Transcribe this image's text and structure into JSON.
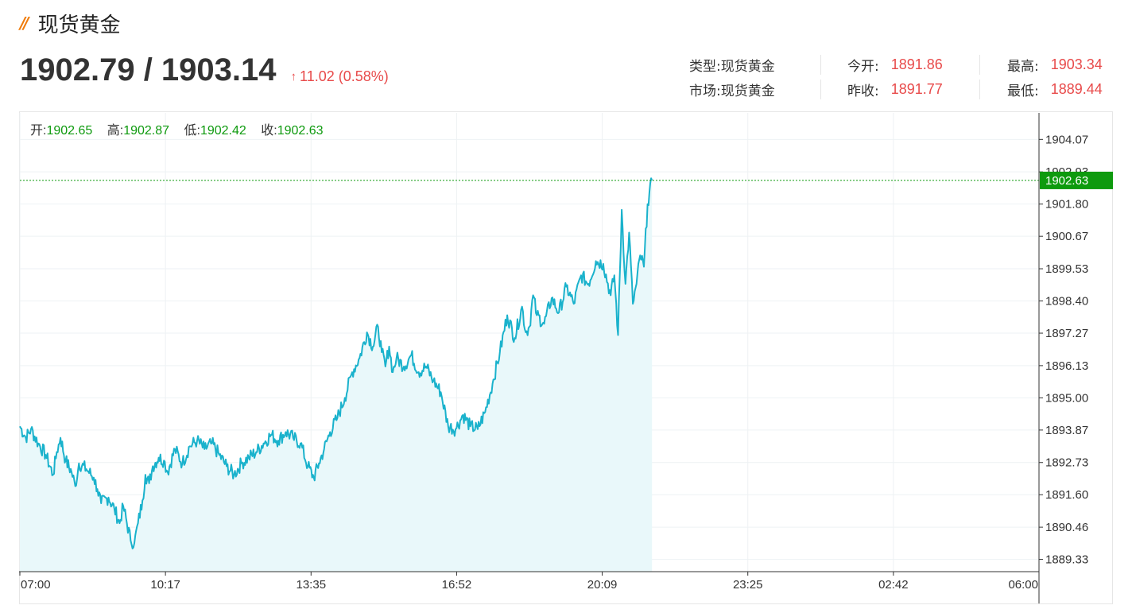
{
  "header": {
    "mark": "//",
    "title": "现货黄金",
    "price": "1902.79 / 1903.14",
    "change_arrow": "↑",
    "change": "11.02 (0.58%)"
  },
  "info": {
    "type_label": "类型:",
    "type_value": "现货黄金",
    "market_label": "市场:",
    "market_value": "现货黄金",
    "open_label": "今开:",
    "open_value": "1891.86",
    "prev_close_label": "昨收:",
    "prev_close_value": "1891.77",
    "high_label": "最高:",
    "high_value": "1903.34",
    "low_label": "最低:",
    "low_value": "1889.44"
  },
  "ohlc": {
    "open_label": "开:",
    "open_value": "1902.65",
    "high_label": "高:",
    "high_value": "1902.87",
    "low_label": "低:",
    "low_value": "1902.42",
    "close_label": "收:",
    "close_value": "1902.63"
  },
  "chart_data": {
    "type": "area",
    "title": "",
    "xlabel": "",
    "ylabel": "",
    "x_ticks": [
      "07:00",
      "10:17",
      "13:35",
      "16:52",
      "20:09",
      "23:25",
      "02:42",
      "06:00"
    ],
    "y_ticks": [
      1889.33,
      1890.46,
      1891.6,
      1892.73,
      1893.87,
      1895.0,
      1896.13,
      1897.27,
      1898.4,
      1899.53,
      1900.67,
      1901.8,
      1902.93,
      1904.07
    ],
    "ylim": [
      1888.9,
      1905.0
    ],
    "xlim_minutes": [
      0,
      1380
    ],
    "current_price_label": "1902.63",
    "current_price": 1902.63,
    "line_color": "#1ab2cc",
    "fill_color": "#e9f8fa",
    "price_tag_color": "#0e9a0e",
    "ohlc_value_color": "#0e9a0e",
    "grid": true,
    "series": [
      {
        "x_minutes": [
          0,
          8,
          15,
          25,
          35,
          45,
          50,
          55,
          62,
          70,
          75,
          80,
          90,
          100,
          105,
          110,
          120,
          128,
          135,
          140,
          150,
          155,
          160,
          166,
          170,
          175,
          180,
          188,
          195,
          200,
          210,
          220,
          230,
          240,
          250,
          260,
          270,
          280,
          290,
          300,
          310,
          320,
          330,
          340,
          350,
          360,
          370,
          380,
          390,
          398,
          405,
          412,
          420,
          430,
          440,
          450,
          460,
          470,
          478,
          485,
          490,
          495,
          500,
          505,
          510,
          520,
          530,
          540,
          550,
          560,
          570,
          580,
          590,
          600,
          610,
          620,
          630,
          640,
          650,
          660,
          670,
          680,
          685,
          690,
          695,
          700,
          710,
          720,
          730,
          740,
          750,
          760,
          770,
          780,
          790,
          800,
          805,
          810,
          815,
          820,
          825,
          830,
          835,
          840,
          845,
          850,
          856
        ],
        "values": [
          1894.0,
          1893.6,
          1893.9,
          1893.4,
          1893.0,
          1892.3,
          1893.1,
          1893.6,
          1892.8,
          1892.4,
          1891.9,
          1892.7,
          1892.5,
          1892.2,
          1891.8,
          1891.3,
          1891.5,
          1891.1,
          1890.6,
          1891.2,
          1890.0,
          1889.9,
          1890.6,
          1891.4,
          1892.3,
          1892.0,
          1892.6,
          1892.9,
          1892.8,
          1892.4,
          1893.2,
          1892.7,
          1893.3,
          1893.5,
          1893.2,
          1893.4,
          1893.0,
          1892.6,
          1892.3,
          1892.7,
          1892.9,
          1893.1,
          1893.4,
          1893.7,
          1893.5,
          1893.8,
          1893.6,
          1893.4,
          1892.6,
          1892.2,
          1892.7,
          1893.2,
          1893.8,
          1894.3,
          1895.0,
          1895.9,
          1896.4,
          1897.3,
          1896.8,
          1897.5,
          1896.6,
          1896.1,
          1896.8,
          1895.9,
          1896.4,
          1896.1,
          1896.5,
          1895.9,
          1896.1,
          1895.6,
          1895.2,
          1894.0,
          1893.9,
          1894.4,
          1894.0,
          1893.9,
          1894.5,
          1895.5,
          1896.6,
          1897.9,
          1897.1,
          1898.2,
          1897.3,
          1897.5,
          1898.6,
          1897.9,
          1897.6,
          1898.5,
          1898.0,
          1898.9,
          1898.3,
          1899.3,
          1899.0,
          1899.8,
          1899.7,
          1898.6,
          1899.3,
          1897.2,
          1901.6,
          1899.0,
          1900.8,
          1898.3,
          1899.0,
          1900.0,
          1899.6,
          1901.8,
          1902.63
        ]
      }
    ]
  }
}
